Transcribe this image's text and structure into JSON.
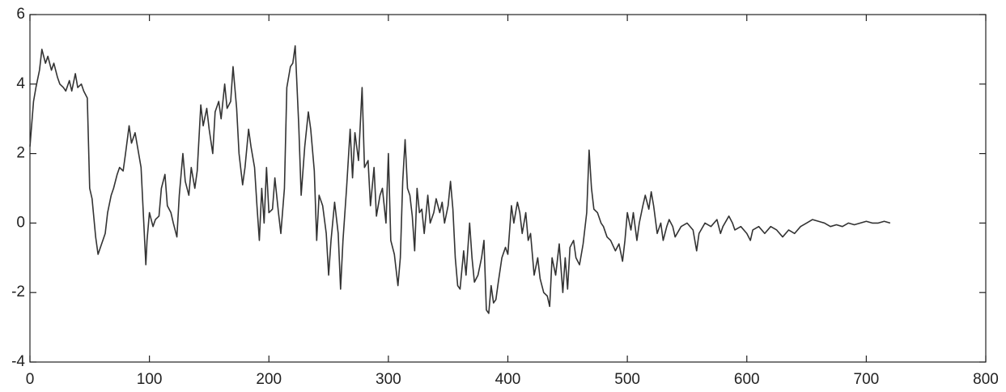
{
  "chart_data": {
    "type": "line",
    "color": "#333333",
    "x": [
      0,
      3,
      5,
      8,
      10,
      13,
      15,
      18,
      20,
      23,
      25,
      28,
      30,
      33,
      35,
      38,
      40,
      43,
      45,
      48,
      50,
      52,
      55,
      57,
      60,
      63,
      65,
      68,
      70,
      73,
      75,
      78,
      80,
      83,
      85,
      88,
      90,
      93,
      95,
      97,
      98,
      100,
      103,
      105,
      108,
      110,
      113,
      115,
      118,
      120,
      123,
      125,
      128,
      130,
      133,
      135,
      138,
      140,
      143,
      145,
      148,
      150,
      153,
      155,
      158,
      160,
      163,
      165,
      168,
      170,
      173,
      175,
      178,
      180,
      183,
      185,
      188,
      190,
      192,
      194,
      196,
      198,
      200,
      203,
      205,
      208,
      210,
      213,
      215,
      218,
      220,
      222,
      225,
      227,
      230,
      233,
      235,
      238,
      240,
      242,
      245,
      248,
      250,
      252,
      255,
      258,
      260,
      262,
      265,
      268,
      270,
      272,
      275,
      278,
      280,
      283,
      285,
      288,
      290,
      293,
      295,
      298,
      300,
      302,
      305,
      308,
      310,
      312,
      314,
      316,
      318,
      320,
      322,
      324,
      326,
      328,
      330,
      333,
      335,
      338,
      340,
      343,
      345,
      347,
      350,
      352,
      354,
      356,
      358,
      360,
      363,
      365,
      368,
      370,
      372,
      375,
      378,
      380,
      382,
      384,
      386,
      388,
      390,
      392,
      395,
      398,
      400,
      403,
      405,
      408,
      410,
      412,
      415,
      417,
      419,
      422,
      425,
      427,
      430,
      433,
      435,
      437,
      440,
      443,
      446,
      448,
      450,
      452,
      455,
      457,
      460,
      463,
      466,
      468,
      470,
      472,
      475,
      478,
      480,
      483,
      486,
      490,
      493,
      496,
      498,
      500,
      503,
      505,
      508,
      510,
      513,
      515,
      518,
      520,
      522,
      525,
      528,
      530,
      533,
      535,
      538,
      540,
      545,
      550,
      555,
      558,
      560,
      565,
      570,
      575,
      578,
      580,
      585,
      588,
      590,
      595,
      600,
      603,
      605,
      610,
      615,
      620,
      625,
      630,
      635,
      640,
      645,
      650,
      655,
      660,
      665,
      670,
      675,
      680,
      685,
      690,
      695,
      700,
      705,
      710,
      715,
      720
    ],
    "values": [
      2.2,
      3.5,
      3.9,
      4.4,
      5.0,
      4.6,
      4.8,
      4.4,
      4.6,
      4.2,
      4.0,
      3.9,
      3.8,
      4.1,
      3.8,
      4.3,
      3.9,
      4.0,
      3.8,
      3.6,
      1.0,
      0.7,
      -0.4,
      -0.9,
      -0.6,
      -0.3,
      0.3,
      0.8,
      1.0,
      1.4,
      1.6,
      1.5,
      2.0,
      2.8,
      2.3,
      2.6,
      2.2,
      1.6,
      0.2,
      -1.2,
      -0.5,
      0.3,
      -0.1,
      0.1,
      0.2,
      1.0,
      1.4,
      0.5,
      0.3,
      0.0,
      -0.4,
      0.8,
      2.0,
      1.2,
      0.8,
      1.6,
      1.0,
      1.5,
      3.4,
      2.8,
      3.3,
      2.7,
      2.0,
      3.2,
      3.5,
      3.0,
      4.0,
      3.3,
      3.5,
      4.5,
      3.3,
      2.0,
      1.1,
      1.6,
      2.7,
      2.2,
      1.6,
      0.5,
      -0.5,
      1.0,
      0.0,
      1.6,
      0.3,
      0.4,
      1.3,
      0.3,
      -0.3,
      1.0,
      3.9,
      4.5,
      4.6,
      5.1,
      2.8,
      0.8,
      2.2,
      3.2,
      2.7,
      1.5,
      -0.5,
      0.8,
      0.5,
      -0.3,
      -1.5,
      -0.5,
      0.6,
      -0.3,
      -1.9,
      -0.5,
      1.0,
      2.7,
      1.3,
      2.6,
      1.8,
      3.9,
      1.6,
      1.8,
      0.5,
      1.6,
      0.2,
      0.8,
      1.0,
      0.0,
      2.0,
      -0.5,
      -0.9,
      -1.8,
      -1.0,
      1.2,
      2.4,
      1.0,
      0.8,
      0.2,
      -0.8,
      1.0,
      0.3,
      0.4,
      -0.3,
      0.8,
      0.0,
      0.3,
      0.7,
      0.3,
      0.6,
      0.0,
      0.5,
      1.2,
      0.4,
      -1.0,
      -1.8,
      -1.9,
      -0.8,
      -1.5,
      0.0,
      -1.0,
      -1.7,
      -1.5,
      -1.0,
      -0.5,
      -2.5,
      -2.6,
      -1.8,
      -2.3,
      -2.2,
      -1.7,
      -1.0,
      -0.7,
      -0.9,
      0.5,
      0.0,
      0.6,
      0.3,
      -0.3,
      0.3,
      -0.5,
      -0.3,
      -1.5,
      -1.0,
      -1.6,
      -2.0,
      -2.1,
      -2.4,
      -1.0,
      -1.5,
      -0.6,
      -2.0,
      -1.0,
      -1.9,
      -0.7,
      -0.5,
      -1.0,
      -1.2,
      -0.6,
      0.3,
      2.1,
      1.0,
      0.4,
      0.3,
      0.0,
      -0.1,
      -0.4,
      -0.5,
      -0.8,
      -0.6,
      -1.1,
      -0.5,
      0.3,
      -0.2,
      0.3,
      -0.5,
      0.0,
      0.5,
      0.8,
      0.4,
      0.9,
      0.5,
      -0.3,
      0.0,
      -0.5,
      -0.1,
      0.1,
      -0.1,
      -0.4,
      -0.1,
      0.0,
      -0.2,
      -0.8,
      -0.3,
      0.0,
      -0.1,
      0.1,
      -0.3,
      -0.1,
      0.2,
      0.0,
      -0.2,
      -0.1,
      -0.3,
      -0.5,
      -0.2,
      -0.1,
      -0.3,
      -0.1,
      -0.2,
      -0.4,
      -0.2,
      -0.3,
      -0.1,
      0.0,
      0.1,
      0.05,
      0.0,
      -0.1,
      -0.05,
      -0.1,
      0.0,
      -0.05,
      0.0,
      0.05,
      0.0,
      0.0,
      0.05,
      0.0
    ],
    "xlim": [
      0,
      800
    ],
    "xticks": [
      0,
      100,
      200,
      300,
      400,
      500,
      600,
      700,
      800
    ],
    "ylim": [
      -4,
      6
    ],
    "yticks": [
      -4,
      -2,
      0,
      2,
      4,
      6
    ]
  }
}
